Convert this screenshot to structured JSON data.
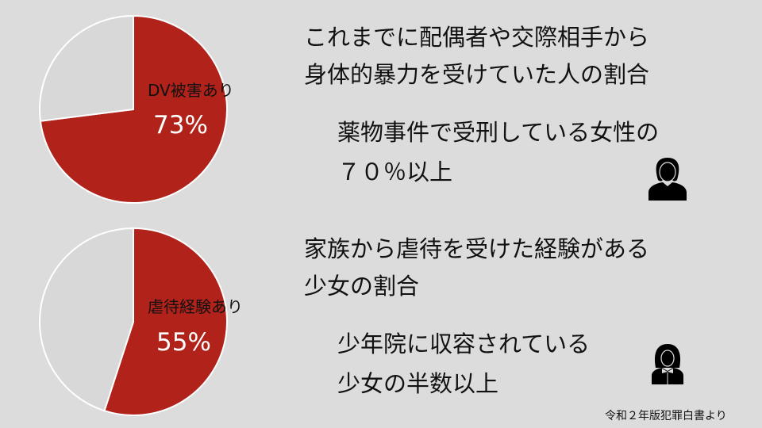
{
  "colors": {
    "background": "#dcdcdc",
    "highlight": "#b0221a",
    "remainder": "#d8d8d8",
    "outline": "#ffffff"
  },
  "chart_data": [
    {
      "type": "pie",
      "slices": [
        {
          "label": "DV被害あり",
          "value": 73,
          "display": "73%",
          "color": "#b0221a"
        },
        {
          "label": "",
          "value": 27,
          "color": "#d8d8d8"
        }
      ]
    },
    {
      "type": "pie",
      "slices": [
        {
          "label": "虐待経験あり",
          "value": 55,
          "display": "55%",
          "color": "#b0221a"
        },
        {
          "label": "",
          "value": 45,
          "color": "#d8d8d8"
        }
      ]
    }
  ],
  "section1": {
    "heading": [
      "これまでに配偶者や交際相手から",
      "身体的暴力を受けていた人の割合"
    ],
    "detail": [
      "薬物事件で受刑している女性の",
      "７０％以上"
    ],
    "icon": "woman-icon"
  },
  "section2": {
    "heading": [
      "家族から虐待を受けた経験がある",
      "少女の割合"
    ],
    "detail": [
      "少年院に収容されている",
      "少女の半数以上"
    ],
    "icon": "girl-icon"
  },
  "source": "令和２年版犯罪白書より"
}
